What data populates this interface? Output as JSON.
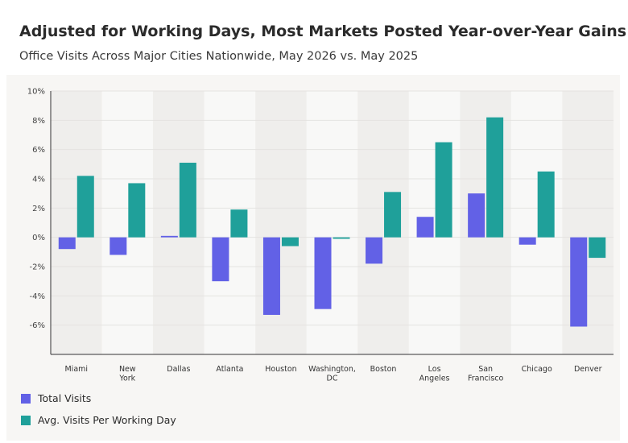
{
  "header": {
    "title": "Adjusted for Working Days, Most Markets Posted Year-over-Year Gains",
    "subtitle": "Office Visits Across Major Cities Nationwide, May 2026 vs. May 2025"
  },
  "colors": {
    "total": "#6261e6",
    "avg": "#1fa09a",
    "band_dark": "#efeeec",
    "band_light": "#f8f8f7",
    "panel": "#f7f6f4"
  },
  "chart_data": {
    "type": "bar",
    "categories": [
      "Miami",
      "New York",
      "Dallas",
      "Atlanta",
      "Houston",
      "Washington, DC",
      "Boston",
      "Los Angeles",
      "San Francisco",
      "Chicago",
      "Denver"
    ],
    "category_label_lines": [
      [
        "Miami"
      ],
      [
        "New",
        "York"
      ],
      [
        "Dallas"
      ],
      [
        "Atlanta"
      ],
      [
        "Houston"
      ],
      [
        "Washington,",
        "DC"
      ],
      [
        "Boston"
      ],
      [
        "Los",
        "Angeles"
      ],
      [
        "San",
        "Francisco"
      ],
      [
        "Chicago"
      ],
      [
        "Denver"
      ]
    ],
    "series": [
      {
        "name": "Total Visits",
        "values": [
          -0.8,
          -1.2,
          0.1,
          -3.0,
          -5.3,
          -4.9,
          -1.8,
          1.4,
          3.0,
          -0.5,
          -6.1
        ]
      },
      {
        "name": "Avg. Visits Per Working Day",
        "values": [
          4.2,
          3.7,
          5.1,
          1.9,
          -0.6,
          -0.1,
          3.1,
          6.5,
          8.2,
          4.5,
          -1.4
        ]
      }
    ],
    "yticks": [
      "10%",
      "8%",
      "6%",
      "4%",
      "2%",
      "0%",
      "-2%",
      "-4%",
      "-6%"
    ],
    "ytick_values": [
      10,
      8,
      6,
      4,
      2,
      0,
      -2,
      -4,
      -6
    ],
    "ylim": [
      -8,
      10
    ],
    "xlabel": "",
    "ylabel": "",
    "grid": true,
    "legend": "bottom-left"
  }
}
